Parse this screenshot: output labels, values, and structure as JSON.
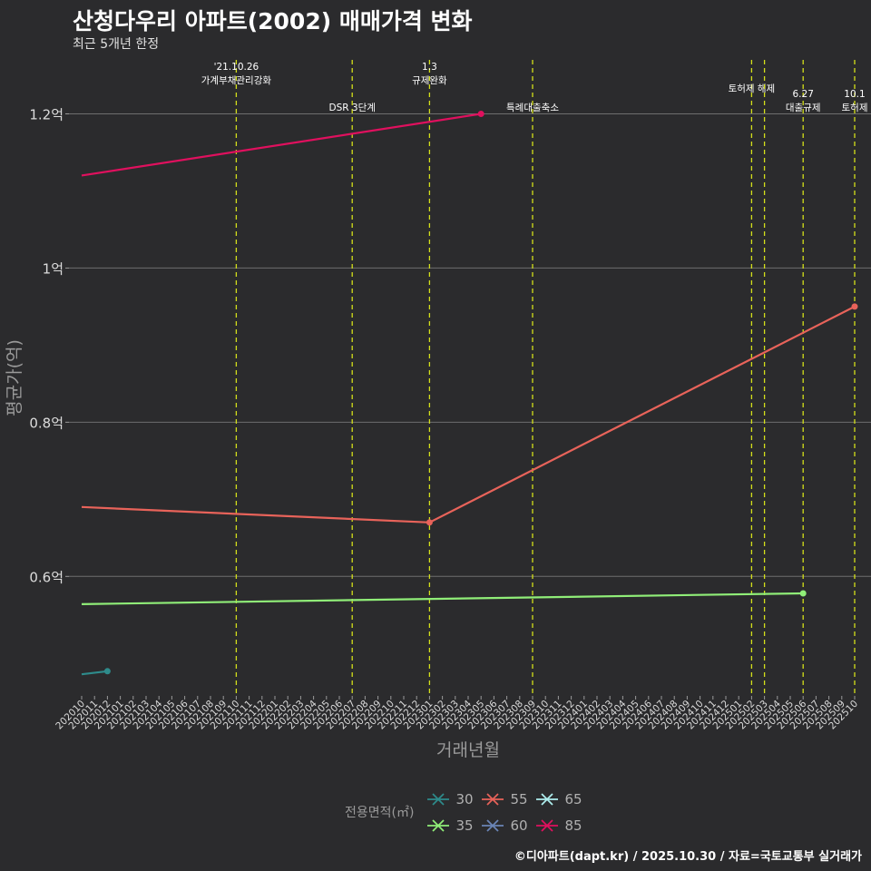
{
  "title": "산청다우리 아파트(2002) 매매가격 변화",
  "subtitle": "최근 5개년 한정",
  "caption": "©디아파트(dapt.kr) / 2025.10.30 / 자료=국토교통부 실거래가",
  "legend": {
    "title": "전용면적(㎡)",
    "items": [
      {
        "label": "30",
        "color": "#2e8b8b"
      },
      {
        "label": "55",
        "color": "#e8635a"
      },
      {
        "label": "65",
        "color": "#aeeeee"
      },
      {
        "label": "35",
        "color": "#90ee78"
      },
      {
        "label": "60",
        "color": "#6a85b6"
      },
      {
        "label": "85",
        "color": "#e0105e"
      }
    ]
  },
  "chart_data": {
    "type": "line",
    "title": "산청다우리 아파트(2002) 매매가격 변화",
    "subtitle": "최근 5개년 한정",
    "xlabel": "거래년월",
    "ylabel": "평균가(억)",
    "ylim": [
      0.445,
      1.27
    ],
    "yticks": [
      0.6,
      0.8,
      1.0,
      1.2
    ],
    "ytick_labels": [
      "0.6억",
      "0.8억",
      "1억",
      "1.2억"
    ],
    "x_categories": [
      "202010",
      "202011",
      "202012",
      "202101",
      "202102",
      "202103",
      "202104",
      "202105",
      "202106",
      "202107",
      "202108",
      "202109",
      "202110",
      "202111",
      "202112",
      "202201",
      "202202",
      "202203",
      "202204",
      "202205",
      "202206",
      "202207",
      "202208",
      "202209",
      "202210",
      "202211",
      "202212",
      "202301",
      "202302",
      "202303",
      "202304",
      "202305",
      "202306",
      "202307",
      "202308",
      "202309",
      "202310",
      "202311",
      "202312",
      "202401",
      "202402",
      "202403",
      "202404",
      "202405",
      "202406",
      "202407",
      "202408",
      "202409",
      "202410",
      "202411",
      "202412",
      "202501",
      "202502",
      "202503",
      "202504",
      "202505",
      "202506",
      "202507",
      "202508",
      "202509",
      "202510"
    ],
    "series": [
      {
        "name": "30",
        "color": "#2e8b8b",
        "points": [
          [
            "202010",
            0.473
          ],
          [
            "202012",
            0.477
          ]
        ],
        "markers": [
          "202012"
        ]
      },
      {
        "name": "35",
        "color": "#90ee78",
        "points": [
          [
            "202010",
            0.564
          ],
          [
            "202506",
            0.578
          ]
        ],
        "markers": [
          "202506"
        ]
      },
      {
        "name": "55",
        "color": "#e8635a",
        "points": [
          [
            "202010",
            0.69
          ],
          [
            "202301",
            0.67
          ],
          [
            "202510",
            0.95
          ]
        ],
        "markers": [
          "202301",
          "202510"
        ]
      },
      {
        "name": "85",
        "color": "#e0105e",
        "points": [
          [
            "202010",
            1.12
          ],
          [
            "202305",
            1.2
          ]
        ],
        "markers": [
          "202305"
        ]
      }
    ],
    "events": [
      {
        "x": "202110",
        "lines": [
          "'21.10.26",
          "가계부채관리강화"
        ],
        "level": 0
      },
      {
        "x": "202207",
        "lines": [
          "DSR 3단계"
        ],
        "level": 1
      },
      {
        "x": "202301",
        "lines": [
          "1.3",
          "규제완화"
        ],
        "level": 0
      },
      {
        "x": "202309",
        "lines": [
          "특례대출축소"
        ],
        "level": 1
      },
      {
        "x": "202502",
        "lines": [
          "토허제 해제"
        ],
        "level": 0
      },
      {
        "x": "202503",
        "lines": [],
        "level": 0
      },
      {
        "x": "202506",
        "lines": [
          "6.27",
          "대출규제"
        ],
        "level": 1
      },
      {
        "x": "202510",
        "lines": [
          "10.1",
          "토허제"
        ],
        "level": 1
      }
    ]
  }
}
